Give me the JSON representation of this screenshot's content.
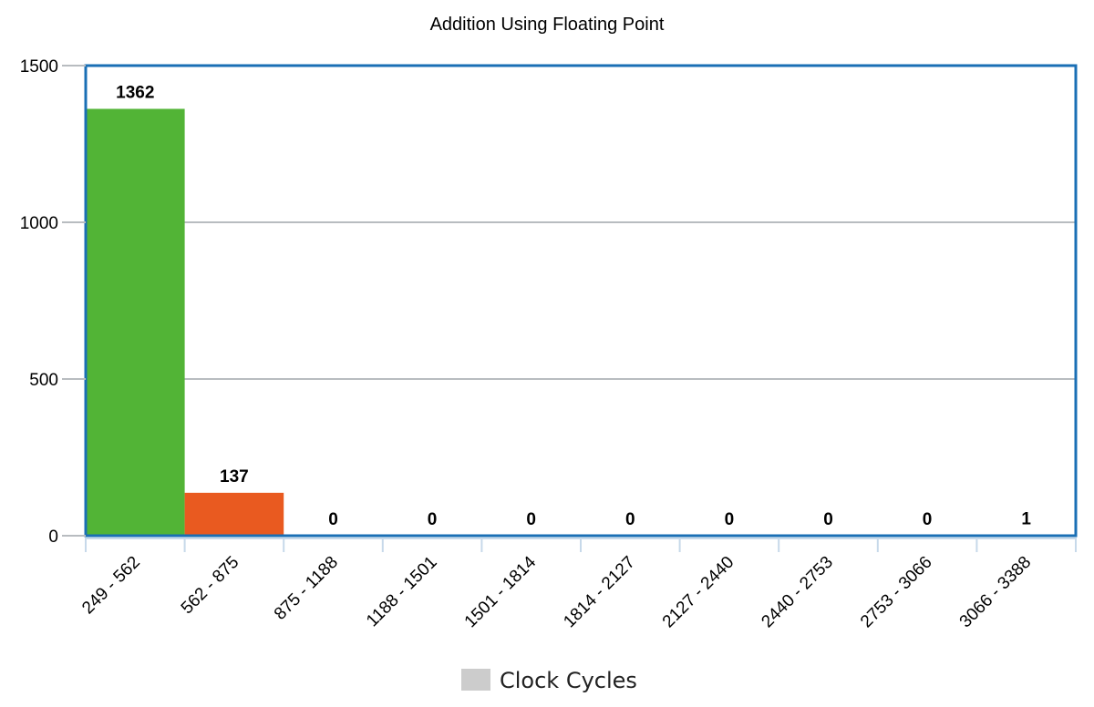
{
  "chart_data": {
    "type": "bar",
    "title": "Addition Using Floating Point",
    "xlabel": "",
    "ylabel": "",
    "categories": [
      "249 - 562",
      "562 - 875",
      "875 - 1188",
      "1188 - 1501",
      "1501 - 1814",
      "1814 - 2127",
      "2127 - 2440",
      "2440 - 2753",
      "2753 - 3066",
      "3066 - 3388"
    ],
    "series": [
      {
        "name": "Clock Cycles",
        "values": [
          1362,
          137,
          0,
          0,
          0,
          0,
          0,
          0,
          0,
          1
        ]
      }
    ],
    "bar_colors": [
      "#52b436",
      "#e95a20",
      "#52b436",
      "#52b436",
      "#52b436",
      "#52b436",
      "#52b436",
      "#52b436",
      "#52b436",
      "#52b436"
    ],
    "yticks": [
      0,
      500,
      1000,
      1500
    ],
    "ylim": [
      0,
      1500
    ],
    "grid": true,
    "legend_position": "bottom",
    "legend_color": "#cccccc",
    "frame_color": "#1a6fb5",
    "grid_color": "#b8bcc0"
  }
}
